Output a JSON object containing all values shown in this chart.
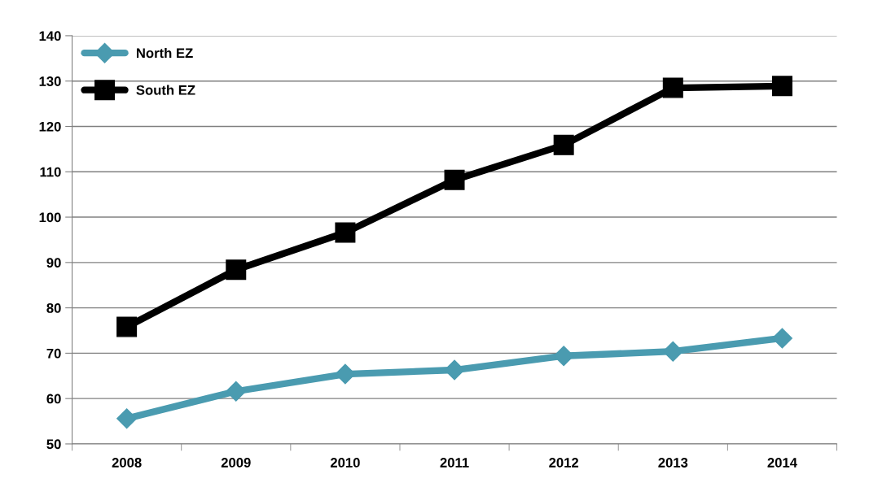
{
  "chart_data": {
    "type": "line",
    "categories": [
      "2008",
      "2009",
      "2010",
      "2011",
      "2012",
      "2013",
      "2014"
    ],
    "series": [
      {
        "name": "North EZ",
        "color": "#4a9bb0",
        "marker": "diamond",
        "values": [
          55.6,
          61.6,
          65.4,
          66.3,
          69.4,
          70.4,
          73.3
        ]
      },
      {
        "name": "South EZ",
        "color": "#000000",
        "marker": "square",
        "values": [
          75.8,
          88.4,
          96.6,
          108.2,
          115.9,
          128.5,
          128.9
        ]
      }
    ],
    "ylim": [
      50,
      140
    ],
    "yticks": [
      50,
      60,
      70,
      80,
      90,
      100,
      110,
      120,
      130,
      140
    ],
    "grid": "y",
    "legend": "top left",
    "line_style": "solid"
  }
}
